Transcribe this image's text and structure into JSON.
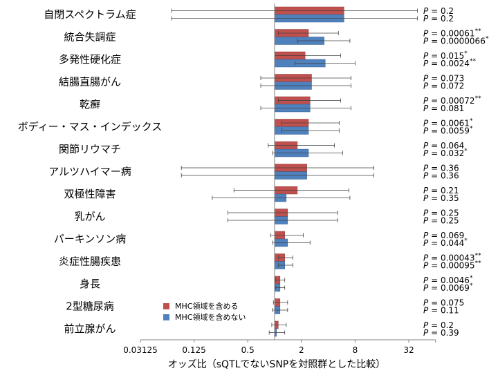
{
  "chart_data": {
    "type": "bar",
    "orientation": "horizontal",
    "x_scale": "log2",
    "xlim": [
      0.03125,
      64
    ],
    "x_ticks": [
      0.03125,
      0.125,
      0.5,
      2,
      8,
      32
    ],
    "x_tick_labels": [
      "0.03125",
      "0.125",
      "0.5",
      "2",
      "8",
      "32"
    ],
    "reference_line": 1,
    "xlabel": "オッズ比（sQTLでないSNPを対照群とした比較）",
    "title": "",
    "legend_position": "bottom-left",
    "series": [
      {
        "name": "MHC領域を含める",
        "color": "#c0504d"
      },
      {
        "name": "MHC領域を含めない",
        "color": "#4f81bd"
      }
    ],
    "p_label": "P",
    "categories": [
      {
        "label": "自閉スペクトラム症",
        "incl": {
          "or": 6.0,
          "lo": 0.07,
          "hi": 40,
          "p": "0.2",
          "sig": ""
        },
        "excl": {
          "or": 6.0,
          "lo": 0.07,
          "hi": 40,
          "p": "0.2",
          "sig": ""
        }
      },
      {
        "label": "統合失調症",
        "incl": {
          "or": 2.4,
          "lo": 1.1,
          "hi": 5.2,
          "p": "0.00061",
          "sig": "**"
        },
        "excl": {
          "or": 3.6,
          "lo": 1.8,
          "hi": 7.0,
          "p": "0.0000066",
          "sig": "**"
        }
      },
      {
        "label": "多発性硬化症",
        "incl": {
          "or": 2.2,
          "lo": 1.0,
          "hi": 5.5,
          "p": "0.015",
          "sig": "*"
        },
        "excl": {
          "or": 3.7,
          "lo": 1.7,
          "hi": 8.0,
          "p": "0.0024",
          "sig": "**"
        }
      },
      {
        "label": "結腸直腸がん",
        "incl": {
          "or": 2.6,
          "lo": 0.7,
          "hi": 7.2,
          "p": "0.073",
          "sig": ""
        },
        "excl": {
          "or": 2.6,
          "lo": 0.7,
          "hi": 7.2,
          "p": "0.072",
          "sig": ""
        }
      },
      {
        "label": "乾癬",
        "incl": {
          "or": 2.5,
          "lo": 1.1,
          "hi": 5.5,
          "p": "0.00072",
          "sig": "**"
        },
        "excl": {
          "or": 2.5,
          "lo": 0.7,
          "hi": 7.2,
          "p": "0.081",
          "sig": ""
        }
      },
      {
        "label": "ボディー・マス・インデックス",
        "incl": {
          "or": 2.4,
          "lo": 1.2,
          "hi": 5.3,
          "p": "0.0061",
          "sig": "*"
        },
        "excl": {
          "or": 2.4,
          "lo": 1.2,
          "hi": 5.3,
          "p": "0.0059",
          "sig": "*"
        }
      },
      {
        "label": "関節リウマチ",
        "incl": {
          "or": 1.8,
          "lo": 0.85,
          "hi": 4.7,
          "p": "0.064",
          "sig": ""
        },
        "excl": {
          "or": 2.4,
          "lo": 0.95,
          "hi": 5.8,
          "p": "0.032",
          "sig": "*"
        }
      },
      {
        "label": "アルツハイマー病",
        "incl": {
          "or": 2.3,
          "lo": 0.09,
          "hi": 13,
          "p": "0.36",
          "sig": ""
        },
        "excl": {
          "or": 2.3,
          "lo": 0.09,
          "hi": 13,
          "p": "0.36",
          "sig": ""
        }
      },
      {
        "label": "双極性障害",
        "incl": {
          "or": 1.8,
          "lo": 0.35,
          "hi": 6.8,
          "p": "0.21",
          "sig": ""
        },
        "excl": {
          "or": 1.35,
          "lo": 0.2,
          "hi": 7.0,
          "p": "0.35",
          "sig": ""
        }
      },
      {
        "label": "乳がん",
        "incl": {
          "or": 1.4,
          "lo": 0.3,
          "hi": 5.1,
          "p": "0.25",
          "sig": ""
        },
        "excl": {
          "or": 1.4,
          "lo": 0.3,
          "hi": 5.1,
          "p": "0.25",
          "sig": ""
        }
      },
      {
        "label": "パーキンソン病",
        "incl": {
          "or": 1.3,
          "lo": 0.9,
          "hi": 2.1,
          "p": "0.069",
          "sig": ""
        },
        "excl": {
          "or": 1.4,
          "lo": 0.95,
          "hi": 2.5,
          "p": "0.044",
          "sig": "*"
        }
      },
      {
        "label": "炎症性腸疾患",
        "incl": {
          "or": 1.3,
          "lo": 1.1,
          "hi": 1.6,
          "p": "0.00043",
          "sig": "**"
        },
        "excl": {
          "or": 1.3,
          "lo": 1.1,
          "hi": 1.6,
          "p": "0.00095",
          "sig": "**"
        }
      },
      {
        "label": "身長",
        "incl": {
          "or": 1.15,
          "lo": 1.03,
          "hi": 1.3,
          "p": "0.0046",
          "sig": "*"
        },
        "excl": {
          "or": 1.15,
          "lo": 1.03,
          "hi": 1.3,
          "p": "0.0069",
          "sig": "*"
        }
      },
      {
        "label": "2型糖尿病",
        "incl": {
          "or": 1.15,
          "lo": 0.97,
          "hi": 1.4,
          "p": "0.075",
          "sig": ""
        },
        "excl": {
          "or": 1.15,
          "lo": 0.95,
          "hi": 1.4,
          "p": "0.11",
          "sig": ""
        }
      },
      {
        "label": "前立腺がん",
        "incl": {
          "or": 1.1,
          "lo": 0.93,
          "hi": 1.35,
          "p": "0.2",
          "sig": ""
        },
        "excl": {
          "or": 1.05,
          "lo": 0.87,
          "hi": 1.3,
          "p": "0.39",
          "sig": ""
        }
      }
    ]
  }
}
